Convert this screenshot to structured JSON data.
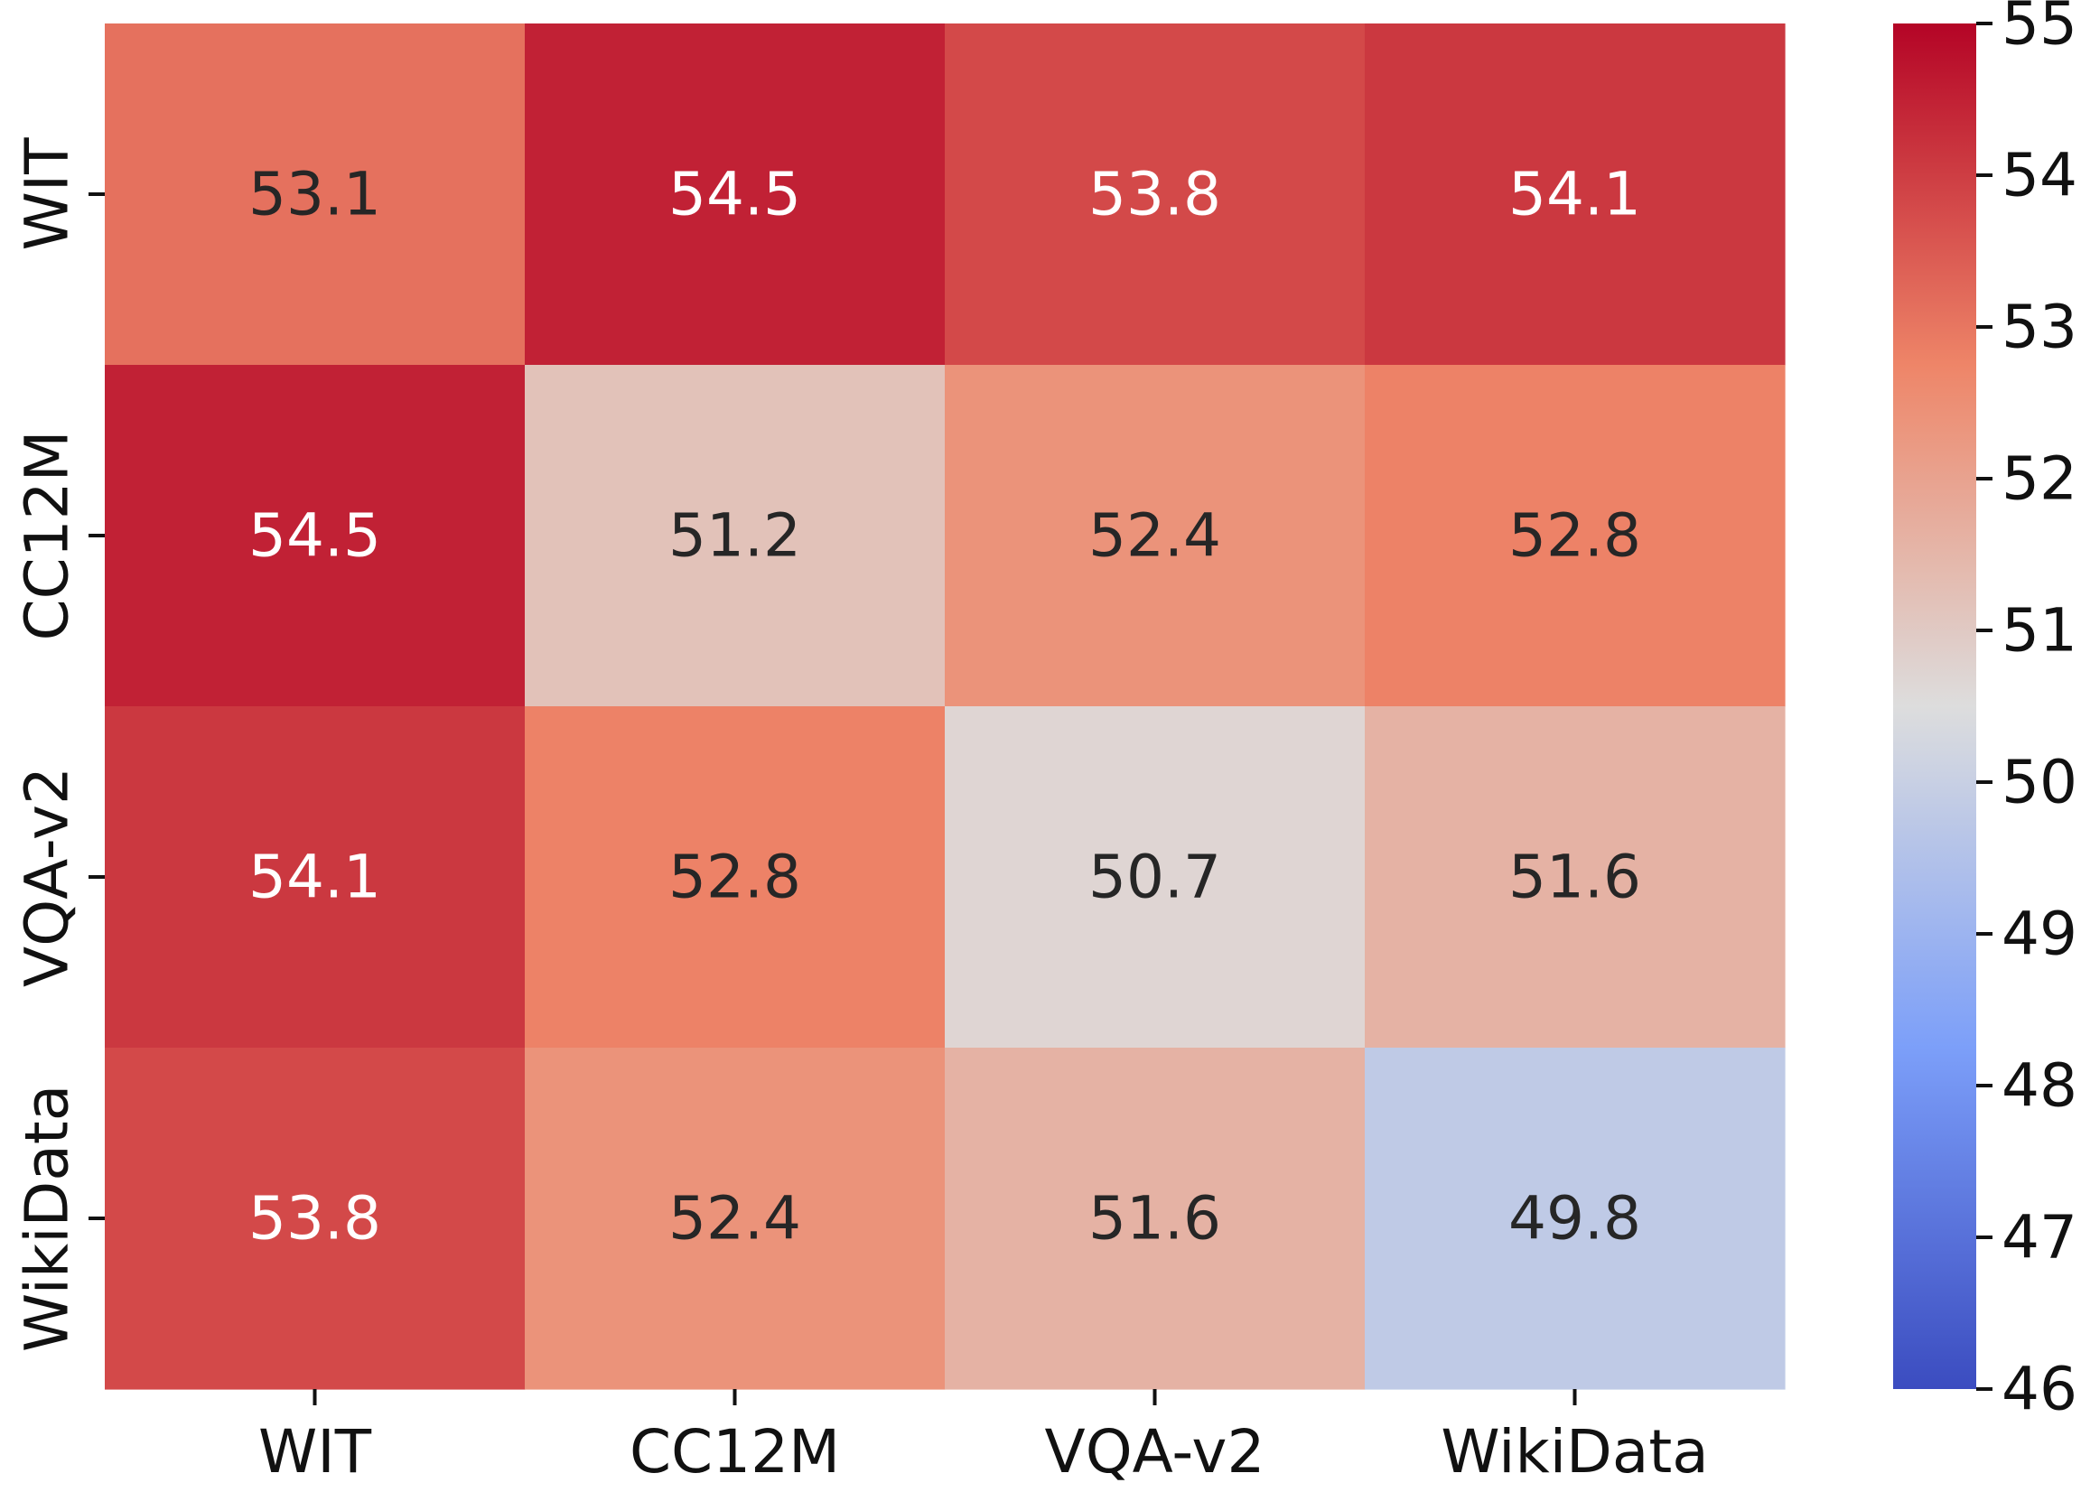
{
  "chart_data": {
    "type": "heatmap",
    "title": "",
    "xlabel": "",
    "ylabel": "",
    "x_categories": [
      "WIT",
      "CC12M",
      "VQA-v2",
      "WikiData"
    ],
    "y_categories": [
      "WIT",
      "CC12M",
      "VQA-v2",
      "WikiData"
    ],
    "values": [
      [
        53.1,
        54.5,
        53.8,
        54.1
      ],
      [
        54.5,
        51.2,
        52.4,
        52.8
      ],
      [
        54.1,
        52.8,
        50.7,
        51.6
      ],
      [
        53.8,
        52.4,
        51.6,
        49.8
      ]
    ],
    "value_labels": [
      [
        "53.1",
        "54.5",
        "53.8",
        "54.1"
      ],
      [
        "54.5",
        "51.2",
        "52.4",
        "52.8"
      ],
      [
        "54.1",
        "52.8",
        "50.7",
        "51.6"
      ],
      [
        "53.8",
        "52.4",
        "51.6",
        "49.8"
      ]
    ],
    "colormap": "coolwarm",
    "color_range": [
      46,
      55
    ],
    "colorbar_ticks": [
      "46",
      "47",
      "48",
      "49",
      "50",
      "51",
      "52",
      "53",
      "54",
      "55"
    ],
    "colorbar_position": "right"
  }
}
